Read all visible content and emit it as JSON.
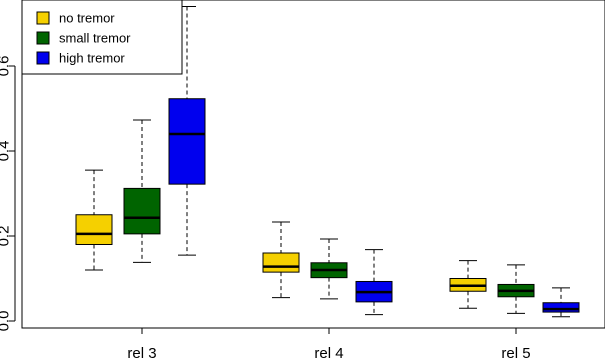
{
  "chart_data": {
    "type": "boxplot",
    "categories": [
      "rel 3",
      "rel 4",
      "rel 5"
    ],
    "ylim": [
      -0.02,
      0.75
    ],
    "y_ticks": [
      0.0,
      0.2,
      0.4,
      0.6
    ],
    "y_tick_labels": [
      "0.0",
      "0.2",
      "0.4",
      "0.6"
    ],
    "grid": false,
    "legend_position": "top-left",
    "series": [
      {
        "name": "no tremor",
        "color": "#f5d000",
        "boxes": [
          {
            "whisker_low": 0.12,
            "q1": 0.18,
            "median": 0.205,
            "q3": 0.25,
            "whisker_high": 0.355
          },
          {
            "whisker_low": 0.055,
            "q1": 0.115,
            "median": 0.128,
            "q3": 0.16,
            "whisker_high": 0.233
          },
          {
            "whisker_low": 0.03,
            "q1": 0.07,
            "median": 0.083,
            "q3": 0.1,
            "whisker_high": 0.142
          }
        ]
      },
      {
        "name": "small tremor",
        "color": "#006400",
        "boxes": [
          {
            "whisker_low": 0.138,
            "q1": 0.205,
            "median": 0.243,
            "q3": 0.312,
            "whisker_high": 0.473
          },
          {
            "whisker_low": 0.052,
            "q1": 0.102,
            "median": 0.12,
            "q3": 0.137,
            "whisker_high": 0.193
          },
          {
            "whisker_low": 0.018,
            "q1": 0.057,
            "median": 0.071,
            "q3": 0.086,
            "whisker_high": 0.132
          }
        ]
      },
      {
        "name": "high tremor",
        "color": "#0000ee",
        "boxes": [
          {
            "whisker_low": 0.155,
            "q1": 0.322,
            "median": 0.44,
            "q3": 0.523,
            "whisker_high": 0.74
          },
          {
            "whisker_low": 0.015,
            "q1": 0.045,
            "median": 0.068,
            "q3": 0.093,
            "whisker_high": 0.168
          },
          {
            "whisker_low": 0.01,
            "q1": 0.021,
            "median": 0.028,
            "q3": 0.043,
            "whisker_high": 0.078
          }
        ]
      }
    ]
  }
}
